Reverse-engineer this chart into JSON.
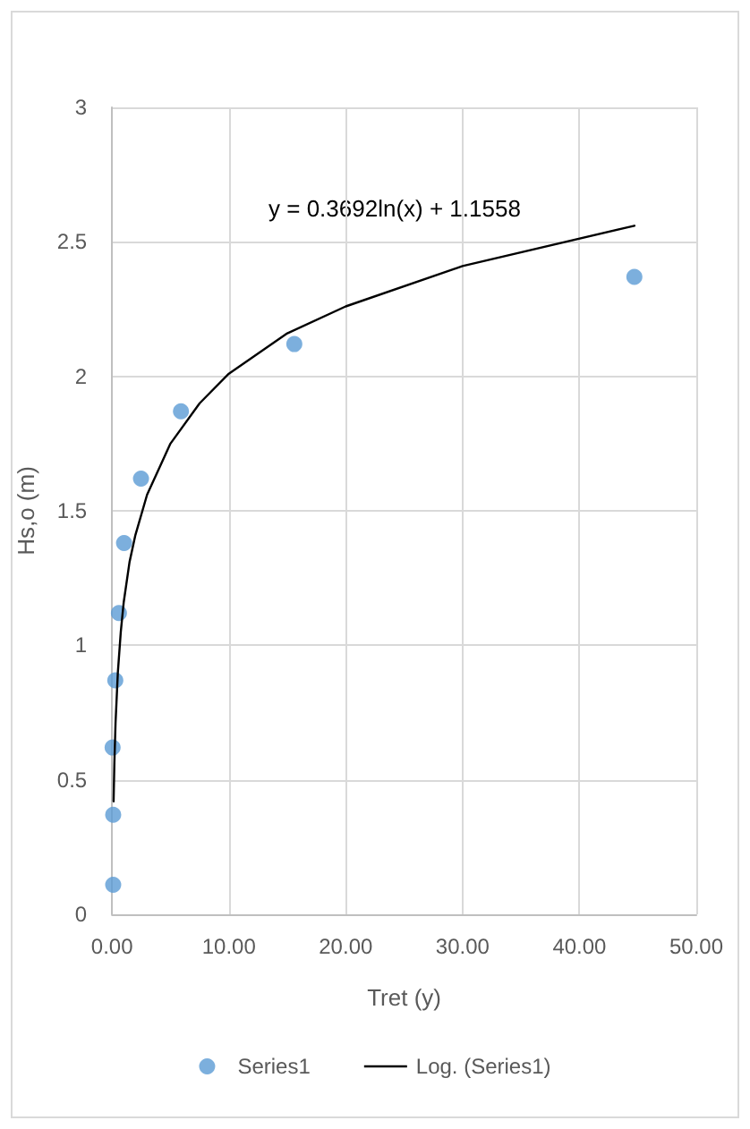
{
  "chart_data": {
    "type": "scatter",
    "xlabel": "Tret (y)",
    "ylabel": "Hs,o (m)",
    "xlim": [
      0,
      50
    ],
    "xticks": [
      {
        "value": 0,
        "label": "0.00"
      },
      {
        "value": 10,
        "label": "10.00"
      },
      {
        "value": 20,
        "label": "20.00"
      },
      {
        "value": 30,
        "label": "30.00"
      },
      {
        "value": 40,
        "label": "40.00"
      },
      {
        "value": 50,
        "label": "50.00"
      }
    ],
    "ylim": [
      0,
      3
    ],
    "yticks": [
      0,
      0.5,
      1,
      1.5,
      2,
      2.5,
      3
    ],
    "grid": true,
    "legend": "bottom",
    "annotations": [
      "y = 0.3692ln(x) + 1.1558"
    ],
    "series": [
      {
        "name": "Series1",
        "marker": "circle",
        "color": "#5b9bd5",
        "x": [
          0.1,
          0.1,
          0.05,
          0.28,
          0.59,
          1.03,
          2.48,
          5.9,
          15.6,
          44.7
        ],
        "values": [
          0.11,
          0.37,
          0.62,
          0.87,
          1.12,
          1.38,
          1.62,
          1.87,
          2.12,
          2.37
        ]
      },
      {
        "name": "Log. (Series1)",
        "type": "line",
        "marker": "none",
        "line_style": "solid",
        "color": "#000000",
        "x": [
          0.135,
          0.2,
          0.3,
          0.5,
          0.75,
          1,
          1.5,
          2,
          3,
          5,
          7.5,
          10,
          15,
          20,
          30,
          44.7
        ],
        "values": [
          0.42,
          0.56,
          0.71,
          0.9,
          1.05,
          1.16,
          1.31,
          1.41,
          1.56,
          1.75,
          1.9,
          2.01,
          2.16,
          2.26,
          2.41,
          2.56
        ]
      }
    ]
  }
}
